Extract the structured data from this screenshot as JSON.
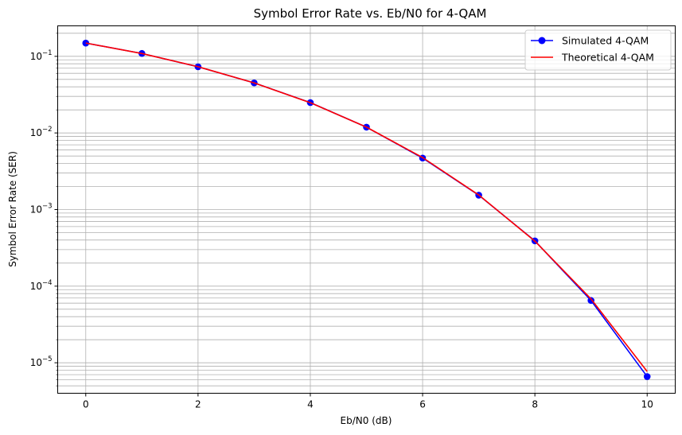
{
  "chart_data": {
    "type": "line",
    "title": "Symbol Error Rate vs. Eb/N0 for 4-QAM",
    "xlabel": "Eb/N0 (dB)",
    "ylabel": "Symbol Error Rate (SER)",
    "xlim": [
      -0.5,
      10.5
    ],
    "ylim": [
      4e-06,
      0.25
    ],
    "yscale": "log",
    "grid": "both (major and minor)",
    "legend_position": "top-right",
    "x_ticks": [
      {
        "value": 0,
        "label": "0"
      },
      {
        "value": 2,
        "label": "2"
      },
      {
        "value": 4,
        "label": "4"
      },
      {
        "value": 6,
        "label": "6"
      },
      {
        "value": 8,
        "label": "8"
      },
      {
        "value": 10,
        "label": "10"
      }
    ],
    "y_ticks": [
      {
        "value": 0.1,
        "base": "10",
        "exp": "−1"
      },
      {
        "value": 0.01,
        "base": "10",
        "exp": "−2"
      },
      {
        "value": 0.001,
        "base": "10",
        "exp": "−3"
      },
      {
        "value": 0.0001,
        "base": "10",
        "exp": "−4"
      },
      {
        "value": 1e-05,
        "base": "10",
        "exp": "−5"
      }
    ],
    "series": [
      {
        "name": "Simulated 4-QAM",
        "color": "#0000ff",
        "marker": "circle",
        "x": [
          0,
          1,
          2,
          3,
          4,
          5,
          6,
          7,
          8,
          9,
          10
        ],
        "values": [
          0.149,
          0.109,
          0.073,
          0.045,
          0.0249,
          0.0119,
          0.0047,
          0.00154,
          0.00039,
          6.5e-05,
          6.6e-06
        ]
      },
      {
        "name": "Theoretical 4-QAM",
        "color": "#ff0000",
        "marker": "none",
        "x": [
          0,
          1,
          2,
          3,
          4,
          5,
          6,
          7,
          8,
          9,
          10
        ],
        "values": [
          0.1492,
          0.1087,
          0.0732,
          0.045,
          0.0248,
          0.0119,
          0.00477,
          0.00155,
          0.000387,
          6.81e-05,
          7.7e-06
        ]
      }
    ]
  }
}
